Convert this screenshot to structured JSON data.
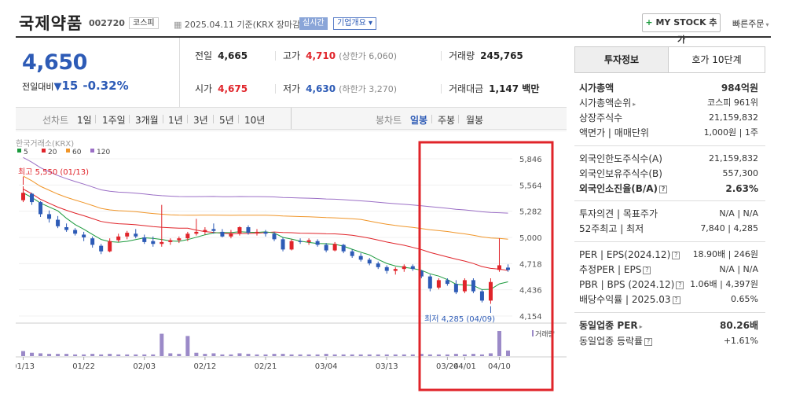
{
  "header": {
    "name": "국제약품",
    "code": "002720",
    "market": "코스피",
    "date": "2025.04.11",
    "basis": "기준(KRX 장마감)",
    "realtime": "실시간",
    "corp_info": "기업개요 ▾",
    "mystock": "MY STOCK 추가",
    "quick_order": "빠른주문"
  },
  "price": {
    "current": "4,650",
    "change_label": "전일대비",
    "change": "15",
    "change_pct": "-0.32%"
  },
  "stats": {
    "prev_label": "전일",
    "prev": "4,665",
    "high_label": "고가",
    "high": "4,710",
    "upper_limit": "(상한가 6,060)",
    "volume_label": "거래량",
    "volume": "245,765",
    "open_label": "시가",
    "open": "4,675",
    "low_label": "저가",
    "low": "4,630",
    "lower_limit": "(하한가 3,270)",
    "amount_label": "거래대금",
    "amount": "1,147 백만"
  },
  "tabs": {
    "line": "선차트",
    "d1": "1일",
    "w1": "1주일",
    "m3": "3개월",
    "y1": "1년",
    "y3": "3년",
    "y5": "5년",
    "y10": "10년",
    "candle": "봉차트",
    "daily": "일봉",
    "weekly": "주봉",
    "monthly": "월봉"
  },
  "chart_data": {
    "type": "candlestick",
    "source": "한국거래소(KRX)",
    "ma_legend": [
      {
        "name": "5",
        "color": "#1a9a3c"
      },
      {
        "name": "20",
        "color": "#e0242a"
      },
      {
        "name": "60",
        "color": "#f0962a"
      },
      {
        "name": "120",
        "color": "#9b6fc6"
      }
    ],
    "y_ticks": [
      "5,846",
      "5,564",
      "5,282",
      "5,000",
      "4,718",
      "4,436",
      "4,154"
    ],
    "ylim": [
      4154,
      5846
    ],
    "x_ticks": [
      "01/13",
      "01/22",
      "02/03",
      "02/12",
      "02/21",
      "03/04",
      "03/13",
      "03/24",
      "04/01",
      "04/10"
    ],
    "high_label": "최고 5,550 (01/13)",
    "low_label": "최저 4,285 (04/09)",
    "volume_label": "거래량",
    "candles": [
      [
        5400,
        5550,
        5380,
        5480
      ],
      [
        5470,
        5480,
        5350,
        5380
      ],
      [
        5380,
        5390,
        5220,
        5250
      ],
      [
        5250,
        5290,
        5160,
        5200
      ],
      [
        5190,
        5230,
        5100,
        5120
      ],
      [
        5110,
        5150,
        5060,
        5080
      ],
      [
        5080,
        5100,
        5020,
        5040
      ],
      [
        5030,
        5060,
        4960,
        5000
      ],
      [
        4990,
        5010,
        4890,
        4920
      ],
      [
        4910,
        4930,
        4820,
        4850
      ],
      [
        4850,
        4990,
        4840,
        4960
      ],
      [
        4970,
        5040,
        4950,
        5010
      ],
      [
        5010,
        5070,
        4980,
        5050
      ],
      [
        5040,
        5090,
        4990,
        5010
      ],
      [
        5000,
        5030,
        4930,
        4950
      ],
      [
        4960,
        5010,
        4900,
        4930
      ],
      [
        4930,
        5350,
        4900,
        4950
      ],
      [
        4950,
        4990,
        4920,
        4970
      ],
      [
        4970,
        5010,
        4940,
        4990
      ],
      [
        4990,
        5060,
        4960,
        5040
      ],
      [
        5040,
        5200,
        5020,
        5060
      ],
      [
        5060,
        5110,
        5030,
        5080
      ],
      [
        5090,
        5150,
        5040,
        5070
      ],
      [
        5060,
        5090,
        5000,
        5010
      ],
      [
        5010,
        5080,
        4990,
        5040
      ],
      [
        5040,
        5120,
        5020,
        5110
      ],
      [
        5110,
        5130,
        5030,
        5050
      ],
      [
        5050,
        5090,
        5020,
        5060
      ],
      [
        5060,
        5080,
        5010,
        5040
      ],
      [
        5040,
        5060,
        4960,
        4980
      ],
      [
        4980,
        5000,
        4850,
        4870
      ],
      [
        4870,
        4980,
        4860,
        4960
      ],
      [
        4960,
        4990,
        4930,
        4950
      ],
      [
        4950,
        4990,
        4920,
        4970
      ],
      [
        4960,
        4980,
        4900,
        4920
      ],
      [
        4920,
        4940,
        4840,
        4860
      ],
      [
        4860,
        4950,
        4850,
        4930
      ],
      [
        4920,
        4930,
        4830,
        4850
      ],
      [
        4850,
        4870,
        4780,
        4800
      ],
      [
        4800,
        4830,
        4740,
        4760
      ],
      [
        4760,
        4780,
        4700,
        4720
      ],
      [
        4720,
        4740,
        4660,
        4680
      ],
      [
        4680,
        4700,
        4610,
        4640
      ],
      [
        4640,
        4680,
        4600,
        4660
      ],
      [
        4660,
        4710,
        4630,
        4690
      ],
      [
        4690,
        4710,
        4640,
        4660
      ],
      [
        4640,
        4650,
        4560,
        4580
      ],
      [
        4580,
        4600,
        4420,
        4450
      ],
      [
        4460,
        4560,
        4440,
        4540
      ],
      [
        4540,
        4560,
        4480,
        4500
      ],
      [
        4500,
        4540,
        4390,
        4410
      ],
      [
        4420,
        4560,
        4400,
        4540
      ],
      [
        4540,
        4560,
        4400,
        4420
      ],
      [
        4420,
        4440,
        4300,
        4320
      ],
      [
        4320,
        4560,
        4285,
        4520
      ],
      [
        4650,
        4990,
        4630,
        4700
      ],
      [
        4675,
        4710,
        4630,
        4650
      ]
    ],
    "volumes": [
      9,
      6,
      5,
      4,
      4,
      4,
      3,
      3,
      4,
      3,
      4,
      3,
      3,
      3,
      3,
      3,
      40,
      5,
      4,
      36,
      6,
      4,
      5,
      3,
      3,
      5,
      4,
      3,
      3,
      4,
      4,
      3,
      3,
      3,
      3,
      4,
      3,
      3,
      3,
      3,
      3,
      3,
      3,
      3,
      3,
      3,
      4,
      3,
      3,
      3,
      4,
      3,
      4,
      3,
      5,
      45,
      10
    ]
  },
  "panel": {
    "tab_info": "투자정보",
    "tab_hoga": "호가 10단계",
    "market_cap_label": "시가총액",
    "market_cap": "984억원",
    "cap_rank_label": "시가총액순위",
    "cap_rank": "코스피 961위",
    "shares_label": "상장주식수",
    "shares": "21,159,832",
    "par_label": "액면가 | 매매단위",
    "par": "1,000원 | 1주",
    "foreign_limit_label": "외국인한도주식수(A)",
    "foreign_limit": "21,159,832",
    "foreign_hold_label": "외국인보유주식수(B)",
    "foreign_hold": "557,300",
    "foreign_rate_label": "외국인소진율(B/A)",
    "foreign_rate": "2.63%",
    "opinion_label": "투자의견 | 목표주가",
    "opinion": "N/A | N/A",
    "w52_label": "52주최고 | 최저",
    "w52": "7,840 | 4,285",
    "per_label": "PER | EPS(2024.12)",
    "per": "18.90배 | 246원",
    "eper_label": "추정PER | EPS",
    "eper": "N/A | N/A",
    "pbr_label": "PBR | BPS (2024.12)",
    "pbr": "1.06배 | 4,397원",
    "div_label": "배당수익률 | 2025.03",
    "div": "0.65%",
    "sector_per_label": "동일업종 PER",
    "sector_per": "80.26배",
    "sector_rate_label": "동일업종 등락률",
    "sector_rate": "+1.61%"
  },
  "colors": {
    "up": "#e0242a",
    "down": "#2d5bb6",
    "highlight": "#e0242a"
  }
}
